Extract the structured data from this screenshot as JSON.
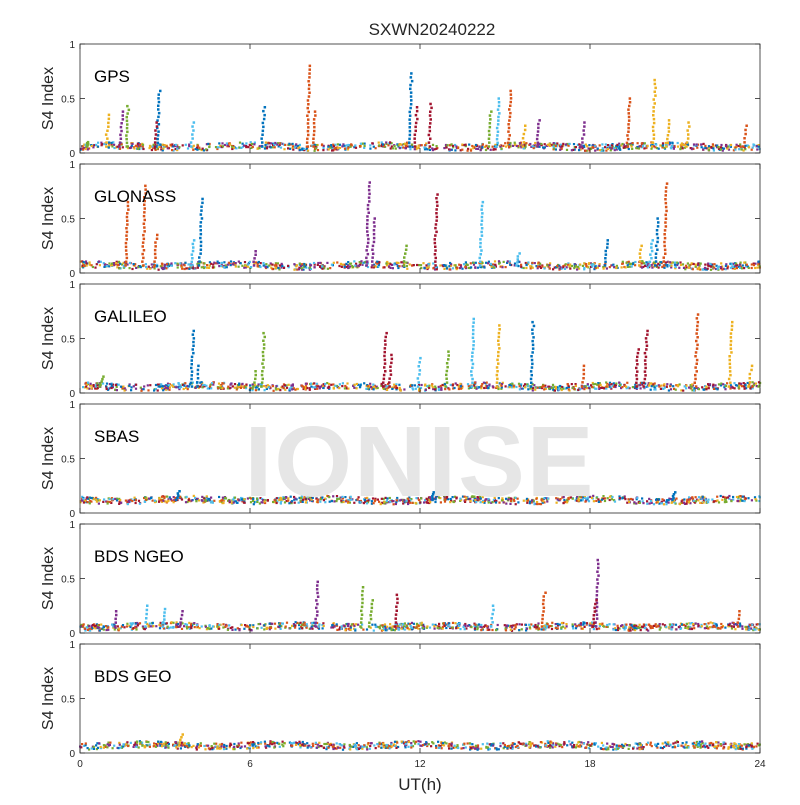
{
  "chart_data": {
    "type": "scatter",
    "title": "SXWN20240222",
    "xlabel": "UT(h)",
    "ylabel": "S4 Index",
    "xlim": [
      0,
      24
    ],
    "ylim": [
      0,
      1
    ],
    "x_ticks": [
      "0",
      "6",
      "12",
      "18",
      "24"
    ],
    "y_ticks": [
      "0",
      "0.5",
      "1"
    ],
    "watermark": "IONISE",
    "grid": false,
    "series_colors": [
      "#0072BD",
      "#D95319",
      "#EDB120",
      "#7E2F8E",
      "#77AC30",
      "#4DBEEE",
      "#A2142F"
    ],
    "panels": [
      {
        "label": "GPS",
        "baseline": 0.06,
        "spikes": [
          {
            "x": 0.3,
            "y": 0.1,
            "c": 4
          },
          {
            "x": 1.0,
            "y": 0.35,
            "c": 2
          },
          {
            "x": 1.5,
            "y": 0.38,
            "c": 3
          },
          {
            "x": 1.7,
            "y": 0.43,
            "c": 4
          },
          {
            "x": 2.8,
            "y": 0.57,
            "c": 0
          },
          {
            "x": 2.7,
            "y": 0.28,
            "c": 6
          },
          {
            "x": 4.0,
            "y": 0.28,
            "c": 5
          },
          {
            "x": 6.5,
            "y": 0.42,
            "c": 0
          },
          {
            "x": 8.1,
            "y": 0.8,
            "c": 1
          },
          {
            "x": 8.3,
            "y": 0.38,
            "c": 1
          },
          {
            "x": 11.7,
            "y": 0.73,
            "c": 0
          },
          {
            "x": 11.9,
            "y": 0.42,
            "c": 6
          },
          {
            "x": 12.4,
            "y": 0.45,
            "c": 6
          },
          {
            "x": 14.5,
            "y": 0.38,
            "c": 4
          },
          {
            "x": 14.8,
            "y": 0.5,
            "c": 5
          },
          {
            "x": 15.2,
            "y": 0.57,
            "c": 1
          },
          {
            "x": 15.7,
            "y": 0.25,
            "c": 2
          },
          {
            "x": 16.2,
            "y": 0.3,
            "c": 3
          },
          {
            "x": 17.8,
            "y": 0.28,
            "c": 3
          },
          {
            "x": 19.4,
            "y": 0.5,
            "c": 1
          },
          {
            "x": 20.3,
            "y": 0.67,
            "c": 2
          },
          {
            "x": 20.8,
            "y": 0.3,
            "c": 2
          },
          {
            "x": 21.5,
            "y": 0.28,
            "c": 2
          },
          {
            "x": 23.5,
            "y": 0.25,
            "c": 1
          }
        ]
      },
      {
        "label": "GLONASS",
        "baseline": 0.07,
        "spikes": [
          {
            "x": 1.7,
            "y": 0.65,
            "c": 1
          },
          {
            "x": 2.3,
            "y": 0.8,
            "c": 1
          },
          {
            "x": 2.7,
            "y": 0.35,
            "c": 1
          },
          {
            "x": 4.3,
            "y": 0.68,
            "c": 0
          },
          {
            "x": 4.0,
            "y": 0.3,
            "c": 5
          },
          {
            "x": 6.2,
            "y": 0.2,
            "c": 3
          },
          {
            "x": 10.2,
            "y": 0.83,
            "c": 3
          },
          {
            "x": 10.4,
            "y": 0.5,
            "c": 3
          },
          {
            "x": 12.6,
            "y": 0.72,
            "c": 6
          },
          {
            "x": 14.2,
            "y": 0.65,
            "c": 5
          },
          {
            "x": 11.5,
            "y": 0.25,
            "c": 4
          },
          {
            "x": 15.5,
            "y": 0.18,
            "c": 5
          },
          {
            "x": 18.6,
            "y": 0.3,
            "c": 0
          },
          {
            "x": 19.8,
            "y": 0.25,
            "c": 2
          },
          {
            "x": 20.7,
            "y": 0.82,
            "c": 1
          },
          {
            "x": 20.4,
            "y": 0.5,
            "c": 0
          },
          {
            "x": 20.2,
            "y": 0.3,
            "c": 5
          }
        ]
      },
      {
        "label": "GALILEO",
        "baseline": 0.06,
        "spikes": [
          {
            "x": 0.8,
            "y": 0.15,
            "c": 4
          },
          {
            "x": 4.0,
            "y": 0.57,
            "c": 0
          },
          {
            "x": 4.2,
            "y": 0.25,
            "c": 0
          },
          {
            "x": 6.5,
            "y": 0.55,
            "c": 4
          },
          {
            "x": 6.2,
            "y": 0.2,
            "c": 4
          },
          {
            "x": 10.8,
            "y": 0.55,
            "c": 6
          },
          {
            "x": 11.0,
            "y": 0.35,
            "c": 6
          },
          {
            "x": 12.0,
            "y": 0.32,
            "c": 5
          },
          {
            "x": 13.0,
            "y": 0.38,
            "c": 4
          },
          {
            "x": 13.9,
            "y": 0.68,
            "c": 5
          },
          {
            "x": 14.8,
            "y": 0.62,
            "c": 2
          },
          {
            "x": 16.0,
            "y": 0.65,
            "c": 0
          },
          {
            "x": 17.8,
            "y": 0.25,
            "c": 1
          },
          {
            "x": 19.7,
            "y": 0.4,
            "c": 6
          },
          {
            "x": 20.0,
            "y": 0.57,
            "c": 6
          },
          {
            "x": 21.8,
            "y": 0.72,
            "c": 1
          },
          {
            "x": 23.0,
            "y": 0.65,
            "c": 2
          },
          {
            "x": 23.7,
            "y": 0.25,
            "c": 2
          }
        ]
      },
      {
        "label": "SBAS",
        "baseline": 0.12,
        "spikes": [
          {
            "x": 3.5,
            "y": 0.2,
            "c": 0
          },
          {
            "x": 12.5,
            "y": 0.19,
            "c": 0
          },
          {
            "x": 21.0,
            "y": 0.19,
            "c": 0
          }
        ]
      },
      {
        "label": "BDS NGEO",
        "baseline": 0.06,
        "spikes": [
          {
            "x": 1.3,
            "y": 0.2,
            "c": 3
          },
          {
            "x": 2.4,
            "y": 0.25,
            "c": 5
          },
          {
            "x": 3.0,
            "y": 0.22,
            "c": 5
          },
          {
            "x": 3.6,
            "y": 0.2,
            "c": 3
          },
          {
            "x": 8.4,
            "y": 0.47,
            "c": 3
          },
          {
            "x": 10.0,
            "y": 0.42,
            "c": 4
          },
          {
            "x": 10.3,
            "y": 0.3,
            "c": 4
          },
          {
            "x": 11.2,
            "y": 0.35,
            "c": 6
          },
          {
            "x": 14.6,
            "y": 0.25,
            "c": 5
          },
          {
            "x": 16.4,
            "y": 0.37,
            "c": 1
          },
          {
            "x": 18.3,
            "y": 0.67,
            "c": 3
          },
          {
            "x": 18.2,
            "y": 0.3,
            "c": 6
          },
          {
            "x": 23.3,
            "y": 0.2,
            "c": 1
          }
        ]
      },
      {
        "label": "BDS GEO",
        "baseline": 0.07,
        "spikes": [
          {
            "x": 3.6,
            "y": 0.17,
            "c": 2
          }
        ]
      }
    ]
  }
}
